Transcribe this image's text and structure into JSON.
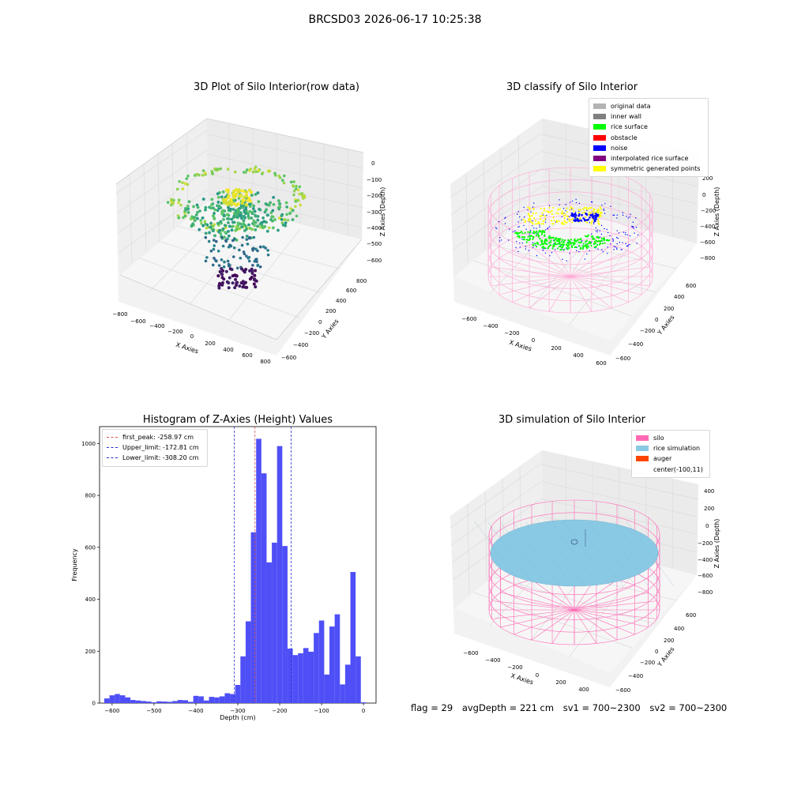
{
  "suptitle": "BRCSD03 2026-06-17 10:25:38",
  "footer": {
    "flag": "flag = 29",
    "avg": "avgDepth = 221 cm",
    "sv1": "sv1 = 700~2300",
    "sv2": "sv2 = 700~2300"
  },
  "colors": {
    "hist_bar": "#4f4ff7",
    "first_peak_line": "#e05050",
    "limit_line": "#2b2bd6",
    "silo": "#ff69b4",
    "rice_sim": "#8ac9e4",
    "auger": "#ff4500",
    "rice_surface": "#00ff00",
    "noise": "#0000ff"
  },
  "chart_data": [
    {
      "type": "scatter",
      "title": "3D Plot of Silo Interior(row data)",
      "xlabel": "X Axies",
      "ylabel": "Y Axies",
      "zlabel": "Z Axies (Depth)",
      "x_ticks": [
        "−800",
        "−600",
        "−400",
        "−200",
        "0",
        "200",
        "400",
        "600",
        "800"
      ],
      "y_ticks": [
        "−600",
        "−400",
        "−200",
        "0",
        "200",
        "400",
        "600",
        "800"
      ],
      "z_ticks": [
        "0",
        "−100",
        "−200",
        "−300",
        "−400",
        "−500",
        "−600"
      ],
      "colormap": "viridis"
    },
    {
      "type": "scatter",
      "title": "3D classify of Silo Interior",
      "xlabel": "X Axies",
      "ylabel": "Y Axies",
      "zlabel": "Z Axies (Depth)",
      "x_ticks": [
        "−600",
        "−400",
        "−200",
        "0",
        "200",
        "400",
        "600"
      ],
      "y_ticks": [
        "−600",
        "−400",
        "−200",
        "0",
        "200",
        "400",
        "600"
      ],
      "z_ticks": [
        "200",
        "0",
        "−200",
        "−400",
        "−600",
        "−800"
      ],
      "legend": [
        {
          "label": "original data",
          "color": "#b3b3b3"
        },
        {
          "label": "inner wall",
          "color": "#808080"
        },
        {
          "label": "rice surface",
          "color": "#00ff00"
        },
        {
          "label": "obstacle",
          "color": "#ff0000"
        },
        {
          "label": "noise",
          "color": "#0000ff"
        },
        {
          "label": "interpolated rice surface",
          "color": "#800080"
        },
        {
          "label": "symmetric generated points",
          "color": "#ffff00"
        }
      ]
    },
    {
      "type": "bar",
      "title": "Histogram of Z-Axies (Height) Values",
      "xlabel": "Depth (cm)",
      "ylabel": "Frequency",
      "xlim": [
        -630,
        30
      ],
      "ylim": [
        0,
        1065
      ],
      "x_ticks": [
        -600,
        -500,
        -400,
        -300,
        -200,
        -100,
        0
      ],
      "y_ticks": [
        0,
        200,
        400,
        600,
        800,
        1000
      ],
      "bin_width": 12.5,
      "bins": [
        {
          "x": -612.5,
          "y": 18
        },
        {
          "x": -600,
          "y": 30
        },
        {
          "x": -587.5,
          "y": 35
        },
        {
          "x": -575,
          "y": 30
        },
        {
          "x": -562.5,
          "y": 22
        },
        {
          "x": -550,
          "y": 12
        },
        {
          "x": -537.5,
          "y": 10
        },
        {
          "x": -525,
          "y": 8
        },
        {
          "x": -512.5,
          "y": 6
        },
        {
          "x": -500,
          "y": 3
        },
        {
          "x": -487.5,
          "y": 7
        },
        {
          "x": -475,
          "y": 6
        },
        {
          "x": -462.5,
          "y": 5
        },
        {
          "x": -450,
          "y": 8
        },
        {
          "x": -437.5,
          "y": 12
        },
        {
          "x": -425,
          "y": 11
        },
        {
          "x": -412.5,
          "y": 5
        },
        {
          "x": -400,
          "y": 28
        },
        {
          "x": -387.5,
          "y": 26
        },
        {
          "x": -375,
          "y": 10
        },
        {
          "x": -362.5,
          "y": 24
        },
        {
          "x": -350,
          "y": 22
        },
        {
          "x": -337.5,
          "y": 26
        },
        {
          "x": -325,
          "y": 38
        },
        {
          "x": -312.5,
          "y": 35
        },
        {
          "x": -300,
          "y": 70
        },
        {
          "x": -287.5,
          "y": 180
        },
        {
          "x": -275,
          "y": 315
        },
        {
          "x": -262.5,
          "y": 658
        },
        {
          "x": -250,
          "y": 1018
        },
        {
          "x": -237.5,
          "y": 885
        },
        {
          "x": -225,
          "y": 542
        },
        {
          "x": -212.5,
          "y": 618
        },
        {
          "x": -200,
          "y": 990
        },
        {
          "x": -187.5,
          "y": 605
        },
        {
          "x": -175,
          "y": 210
        },
        {
          "x": -162.5,
          "y": 185
        },
        {
          "x": -150,
          "y": 192
        },
        {
          "x": -137.5,
          "y": 212
        },
        {
          "x": -125,
          "y": 198
        },
        {
          "x": -112.5,
          "y": 270
        },
        {
          "x": -100,
          "y": 318
        },
        {
          "x": -87.5,
          "y": 110
        },
        {
          "x": -75,
          "y": 295
        },
        {
          "x": -62.5,
          "y": 342
        },
        {
          "x": -50,
          "y": 72
        },
        {
          "x": -37.5,
          "y": 148
        },
        {
          "x": -25,
          "y": 505
        },
        {
          "x": -12.5,
          "y": 180
        },
        {
          "x": 0,
          "y": 3
        }
      ],
      "vlines": [
        {
          "label": "first_peak: -258.97 cm",
          "x": -258.97,
          "color": "#e05050"
        },
        {
          "label": "Upper_limit: -172.81 cm",
          "x": -172.81,
          "color": "#2b2bd6"
        },
        {
          "label": "Lower_limit: -308.20 cm",
          "x": -308.2,
          "color": "#2b2bd6"
        }
      ]
    },
    {
      "type": "scatter",
      "title": "3D simulation of Silo Interior",
      "xlabel": "X Axies",
      "ylabel": "Y Axies",
      "zlabel": "Z Axies (Depth)",
      "x_ticks": [
        "−600",
        "−400",
        "−200",
        "0",
        "200",
        "400"
      ],
      "y_ticks": [
        "−600",
        "−400",
        "−200",
        "0",
        "200",
        "400",
        "600"
      ],
      "z_ticks": [
        "400",
        "200",
        "0",
        "−200",
        "−400",
        "−600",
        "−800"
      ],
      "legend": [
        {
          "label": "silo",
          "color": "#ff69b4"
        },
        {
          "label": "rice simulation",
          "color": "#8ac9e4"
        },
        {
          "label": "auger",
          "color": "#ff4500"
        },
        {
          "label": "center(-100,11)",
          "color": ""
        }
      ]
    }
  ]
}
